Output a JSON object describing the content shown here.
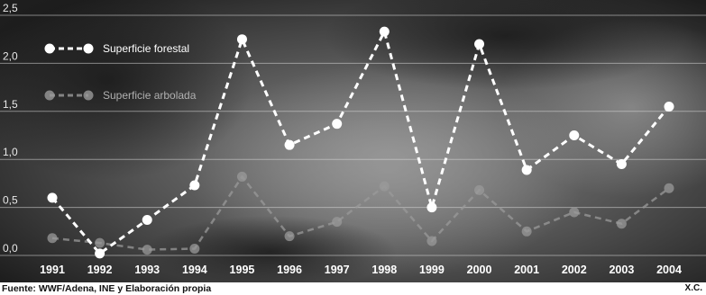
{
  "chart_data": {
    "type": "line",
    "title": "",
    "xlabel": "",
    "ylabel": "",
    "categories": [
      "1991",
      "1992",
      "1993",
      "1994",
      "1995",
      "1996",
      "1997",
      "1998",
      "1999",
      "2000",
      "2001",
      "2002",
      "2003",
      "2004"
    ],
    "y_ticks": [
      "0,0",
      "0,5",
      "1,0",
      "1,5",
      "2,0",
      "2,5"
    ],
    "ylim": [
      0,
      2.5
    ],
    "grid": true,
    "legend_position": "top-left",
    "series": [
      {
        "name": "Superficie forestal",
        "color": "#ffffff",
        "values": [
          0.6,
          0.02,
          0.37,
          0.73,
          2.25,
          1.15,
          1.37,
          2.33,
          0.5,
          2.2,
          0.89,
          1.25,
          0.95,
          1.55
        ]
      },
      {
        "name": "Superficie arbolada",
        "color": "#9a9a9a",
        "values": [
          0.18,
          0.13,
          0.06,
          0.07,
          0.82,
          0.2,
          0.35,
          0.72,
          0.15,
          0.68,
          0.25,
          0.45,
          0.33,
          0.7
        ]
      }
    ]
  },
  "footer": {
    "source": "Fuente: WWF/Adena, INE y Elaboración propia",
    "credit": "X.C."
  },
  "colors": {
    "background_dark": "#2a2a2a",
    "grid": "#d8d8d8"
  }
}
